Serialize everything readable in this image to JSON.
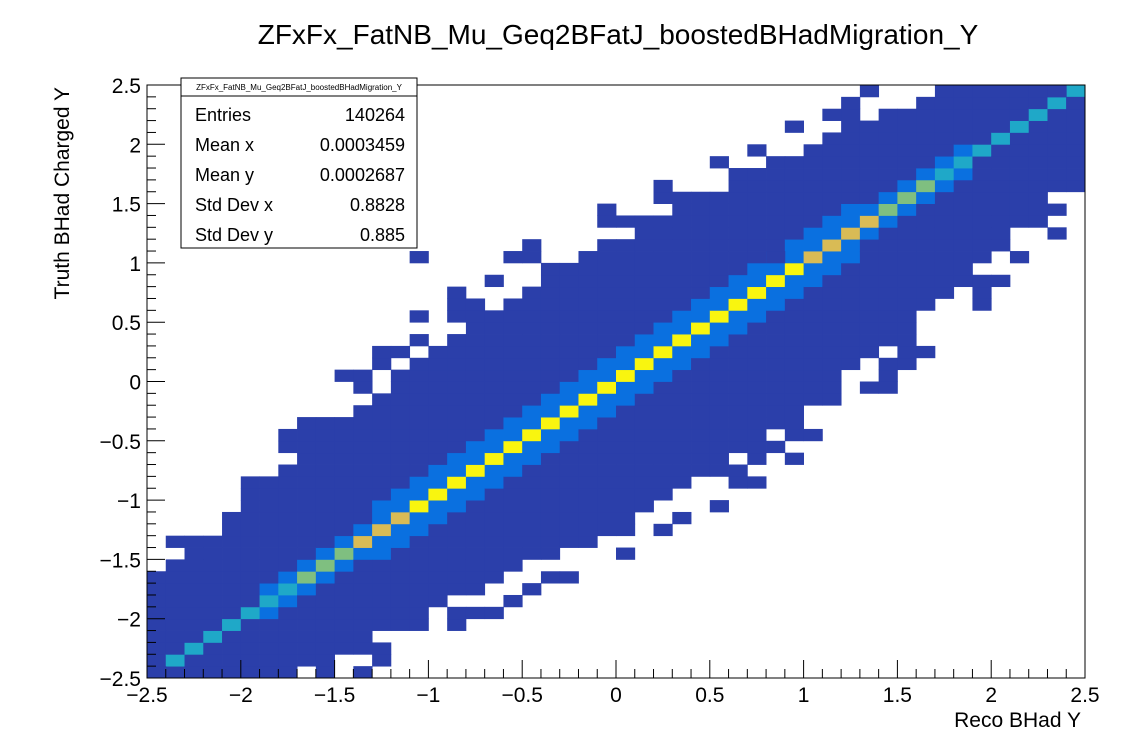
{
  "chart_data": {
    "type": "heatmap",
    "title": "ZFxFx_FatNB_Mu_Geq2BFatJ_boostedBHadMigration_Y",
    "xlabel": "Reco BHad Y",
    "ylabel": "Truth BHad Charged Y",
    "xlim": [
      -2.5,
      2.5
    ],
    "ylim": [
      -2.5,
      2.5
    ],
    "nbins_x": 50,
    "nbins_y": 50,
    "x_ticks": [
      "−2.5",
      "−2",
      "−1.5",
      "−1",
      "−0.5",
      "0",
      "0.5",
      "1",
      "1.5",
      "2",
      "2.5"
    ],
    "y_ticks": [
      "−2.5",
      "−2",
      "−1.5",
      "−1",
      "−0.5",
      "0",
      "0.5",
      "1",
      "1.5",
      "2",
      "2.5"
    ],
    "grid": false,
    "colors": {
      "low": "#2b3faa",
      "mid_low": "#0a70e0",
      "mid": "#1fa8c8",
      "mid_high": "#7fbf80",
      "high": "#d9bb55",
      "peak": "#f9f50f"
    },
    "diagonal": {
      "description_values": "diagonal bins y=x show highest density",
      "peak_value_range": [
        -1.0,
        1.0
      ]
    },
    "stats": {
      "name": "ZFxFx_FatNB_Mu_Geq2BFatJ_boostedBHadMigration_Y",
      "rows": [
        {
          "label": "Entries",
          "value": "140264"
        },
        {
          "label": "Mean x",
          "value": "0.0003459"
        },
        {
          "label": "Mean y",
          "value": "0.0002687"
        },
        {
          "label": "Std Dev x",
          "value": "0.8828"
        },
        {
          "label": "Std Dev y",
          "value": "0.885"
        }
      ]
    }
  }
}
